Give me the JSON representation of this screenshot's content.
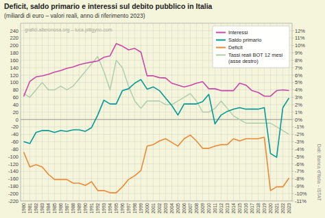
{
  "chart_data": {
    "type": "line",
    "title": "Deficit, saldo primario e interessi sul debito pubblico in Italia",
    "subtitle": "(miliardi di euro – valori reali, anno di riferimento 2023)",
    "annotations": [
      "grafici.alteronosa.org – luca.pittgyno.com",
      "Dati: Banca d'Italia - ISTAT"
    ],
    "x": [
      1980,
      1981,
      1982,
      1983,
      1984,
      1985,
      1986,
      1987,
      1988,
      1989,
      1990,
      1991,
      1992,
      1993,
      1994,
      1995,
      1996,
      1997,
      1998,
      1999,
      2000,
      2001,
      2002,
      2003,
      2004,
      2005,
      2006,
      2007,
      2008,
      2009,
      2010,
      2011,
      2012,
      2013,
      2014,
      2015,
      2016,
      2017,
      2018,
      2019,
      2020,
      2021,
      2022,
      2023
    ],
    "series": [
      {
        "name": "Interessi",
        "color": "#cc44aa",
        "values": [
          62,
          103,
          115,
          118,
          122,
          128,
          132,
          138,
          142,
          148,
          152,
          155,
          158,
          168,
          172,
          205,
          198,
          188,
          192,
          182,
          118,
          118,
          113,
          112,
          98,
          93,
          88,
          92,
          98,
          102,
          83,
          83,
          78,
          78,
          78,
          98,
          93,
          78,
          73,
          63,
          63,
          78,
          80,
          78
        ]
      },
      {
        "name": "Saldo primario",
        "color": "#009999",
        "values": [
          -60,
          -65,
          -35,
          -30,
          -30,
          -35,
          -30,
          -32,
          -28,
          -28,
          -32,
          -22,
          12,
          52,
          42,
          42,
          78,
          83,
          98,
          108,
          82,
          88,
          78,
          58,
          38,
          12,
          42,
          42,
          42,
          48,
          68,
          -12,
          12,
          22,
          28,
          32,
          28,
          28,
          28,
          32,
          -92,
          -102,
          32,
          58
        ]
      },
      {
        "name": "Deficit",
        "color": "#ee8833",
        "values": [
          -88,
          -128,
          -122,
          -128,
          -148,
          -162,
          -162,
          -162,
          -172,
          -172,
          -178,
          -168,
          -192,
          -192,
          -198,
          -198,
          -182,
          -162,
          -152,
          -138,
          -72,
          -68,
          -58,
          -52,
          -62,
          -72,
          -52,
          -42,
          -58,
          -78,
          -78,
          -72,
          -68,
          -68,
          -52,
          -58,
          -52,
          -52,
          -52,
          -48,
          -192,
          -182,
          -182,
          -158
        ]
      },
      {
        "name": "Tassi reali BOT 12 mesi\n(asse destro)",
        "color": "#aaccaa",
        "axis": "y2",
        "values": [
          3.5,
          3.0,
          4.0,
          5.0,
          4.0,
          4.0,
          4.5,
          4.0,
          4.5,
          5.5,
          6.5,
          7.5,
          8.5,
          6.5,
          4.0,
          8.0,
          7.0,
          4.5,
          2.5,
          1.5,
          2.5,
          2.5,
          2.5,
          2.0,
          2.0,
          2.5,
          3.0,
          3.5,
          2.5,
          1.0,
          1.0,
          1.5,
          2.5,
          1.5,
          0.5,
          0.0,
          -0.5,
          -0.5,
          -0.5,
          -0.5,
          -0.5,
          -1.0,
          -1.5,
          -2.0
        ]
      }
    ],
    "xlim": [
      1979.5,
      2023.5
    ],
    "xticks": [
      1980,
      1981,
      1982,
      1983,
      1984,
      1985,
      1986,
      1987,
      1988,
      1989,
      1990,
      1991,
      1992,
      1993,
      1994,
      1995,
      1996,
      1997,
      1998,
      1999,
      2000,
      2001,
      2002,
      2003,
      2004,
      2005,
      2006,
      2007,
      2008,
      2009,
      2010,
      2011,
      2012,
      2013,
      2014,
      2015,
      2016,
      2017,
      2018,
      2019,
      2020,
      2021,
      2022,
      2023
    ],
    "ylim": [
      -220,
      260
    ],
    "yticks": [
      -220,
      -200,
      -180,
      -160,
      -140,
      -120,
      -100,
      -80,
      -60,
      -40,
      -20,
      0,
      20,
      40,
      60,
      80,
      100,
      120,
      140,
      160,
      180,
      200,
      220,
      240
    ],
    "y2lim": [
      -11,
      13
    ],
    "y2ticks": [
      {
        "value": -11,
        "label": "-11%"
      },
      {
        "value": -10,
        "label": "-10%"
      },
      {
        "value": -9,
        "label": "-9%"
      },
      {
        "value": -8,
        "label": "-8%"
      },
      {
        "value": -7,
        "label": "-7%"
      },
      {
        "value": -6,
        "label": "-6%"
      },
      {
        "value": -5,
        "label": "-5%"
      },
      {
        "value": -4,
        "label": "-4%"
      },
      {
        "value": -3,
        "label": "-3%"
      },
      {
        "value": -2,
        "label": "-2%"
      },
      {
        "value": -1,
        "label": "-1%"
      },
      {
        "value": 0,
        "label": "0%"
      },
      {
        "value": 1,
        "label": "1%"
      },
      {
        "value": 2,
        "label": "2%"
      },
      {
        "value": 3,
        "label": "3%"
      },
      {
        "value": 4,
        "label": "4%"
      },
      {
        "value": 5,
        "label": "5%"
      },
      {
        "value": 6,
        "label": "6%"
      },
      {
        "value": 7,
        "label": "7%"
      },
      {
        "value": 8,
        "label": "8%"
      },
      {
        "value": 9,
        "label": "9%"
      },
      {
        "value": 10,
        "label": "10%"
      },
      {
        "value": 11,
        "label": "11%"
      },
      {
        "value": 12,
        "label": "12%"
      }
    ],
    "grid": true,
    "legend": "upper right"
  }
}
